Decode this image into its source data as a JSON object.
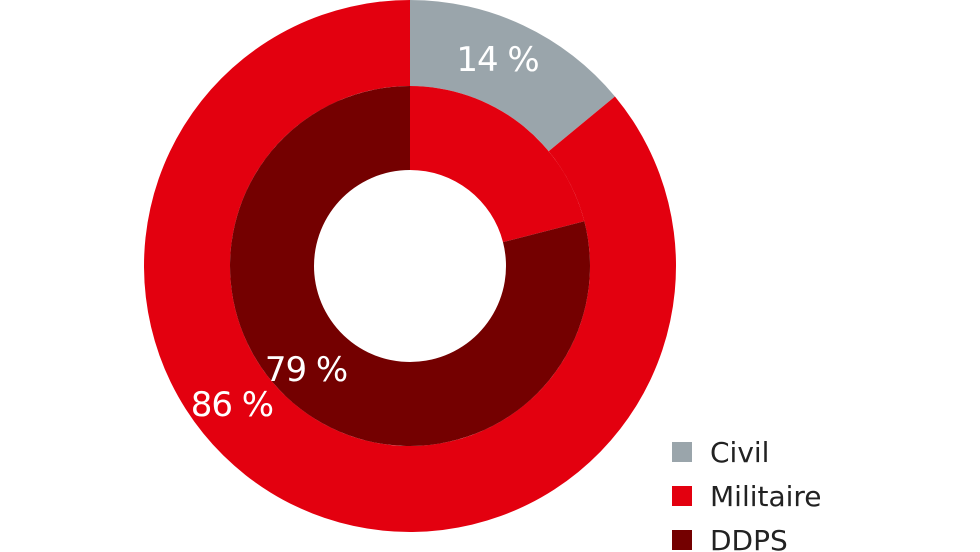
{
  "chart_data": {
    "type": "pie",
    "variant": "nested-donut",
    "rings": [
      {
        "ring": "outer",
        "slices": [
          {
            "category": "Civil",
            "value": 14,
            "label": "14 %",
            "color": "#9aa5ab"
          },
          {
            "category": "Militaire",
            "value": 86,
            "label": "86 %",
            "color": "#e3000f"
          }
        ]
      },
      {
        "ring": "inner",
        "slices": [
          {
            "category": "Militaire",
            "value": 21,
            "label": "",
            "color": "#e3000f"
          },
          {
            "category": "DDPS",
            "value": 79,
            "label": "79 %",
            "color": "#740000"
          }
        ]
      }
    ],
    "legend": {
      "position": "bottom-right",
      "items": [
        {
          "label": "Civil",
          "color": "#9aa5ab"
        },
        {
          "label": "Militaire",
          "color": "#e3000f"
        },
        {
          "label": "DDPS",
          "color": "#740000"
        }
      ]
    }
  }
}
